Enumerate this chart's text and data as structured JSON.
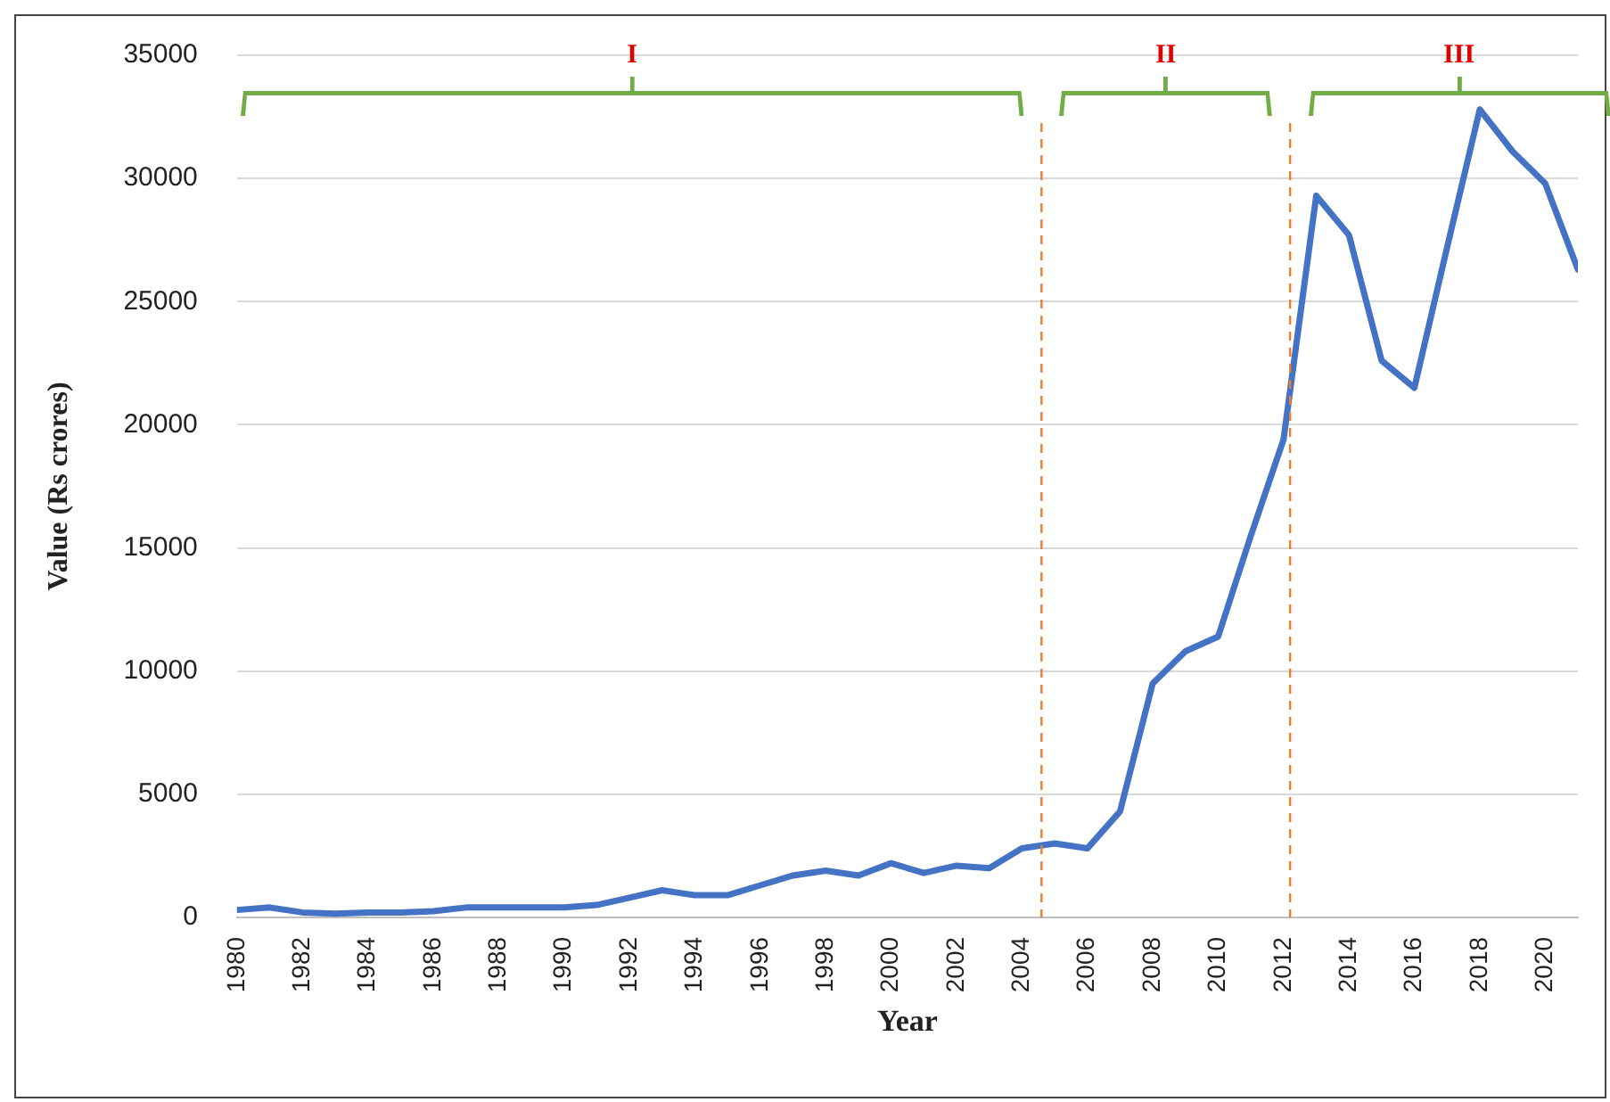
{
  "chart_data": {
    "type": "line",
    "xlabel": "Year",
    "ylabel": "Value (Rs crores)",
    "x": [
      1980,
      1981,
      1982,
      1983,
      1984,
      1985,
      1986,
      1987,
      1988,
      1989,
      1990,
      1991,
      1992,
      1993,
      1994,
      1995,
      1996,
      1997,
      1998,
      1999,
      2000,
      2001,
      2002,
      2003,
      2004,
      2005,
      2006,
      2007,
      2008,
      2009,
      2010,
      2011,
      2012,
      2013,
      2014,
      2015,
      2016,
      2017,
      2018,
      2019,
      2020,
      2021
    ],
    "series": [
      {
        "color": "#4472c4",
        "values": [
          300,
          400,
          200,
          150,
          200,
          200,
          250,
          400,
          400,
          400,
          400,
          500,
          800,
          1100,
          900,
          900,
          1300,
          1700,
          1900,
          1700,
          2200,
          1800,
          2100,
          2000,
          2800,
          3000,
          2800,
          4300,
          9500,
          10800,
          11400,
          15500,
          19400,
          29300,
          27700,
          22600,
          21500,
          27200,
          32800,
          31100,
          29800,
          26300
        ]
      }
    ],
    "xlim": [
      1980,
      2021
    ],
    "xticks": [
      1980,
      1982,
      1984,
      1986,
      1988,
      1990,
      1992,
      1994,
      1996,
      1998,
      2000,
      2002,
      2004,
      2006,
      2008,
      2010,
      2012,
      2014,
      2016,
      2018,
      2020
    ],
    "ylim": [
      0,
      35000
    ],
    "yticks": [
      0,
      5000,
      10000,
      15000,
      20000,
      25000,
      30000,
      35000
    ],
    "grid": "y",
    "legend": false,
    "marker": "none",
    "line_style": "solid",
    "ref_lines": [
      {
        "axis": "x",
        "value": 2004.6,
        "color": "#ed7d31",
        "line_style": "dashed"
      },
      {
        "axis": "x",
        "value": 2012.2,
        "color": "#ed7d31",
        "line_style": "dashed"
      }
    ],
    "annotations": [
      "I",
      "II",
      "III"
    ]
  }
}
